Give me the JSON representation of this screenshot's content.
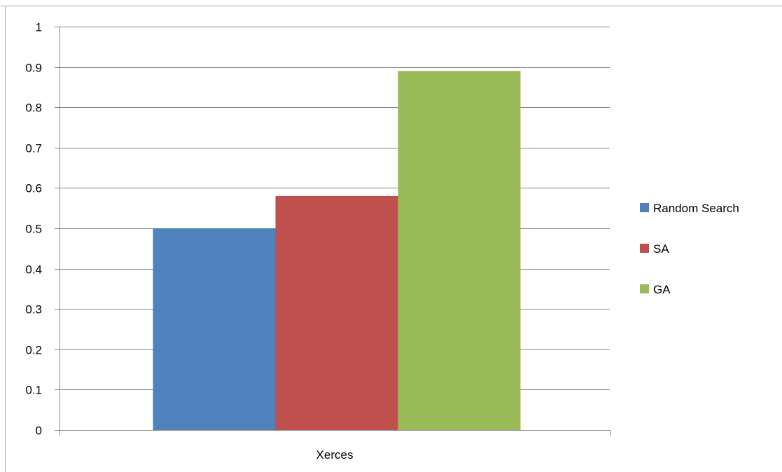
{
  "chart_data": {
    "type": "bar",
    "title": "",
    "xlabel": "",
    "ylabel": "",
    "categories": [
      "Xerces"
    ],
    "series": [
      {
        "name": "Random Search",
        "values": [
          0.5
        ],
        "color": "#4f81bd"
      },
      {
        "name": "SA",
        "values": [
          0.58
        ],
        "color": "#c0504d"
      },
      {
        "name": "GA",
        "values": [
          0.89
        ],
        "color": "#9bbb59"
      }
    ],
    "ylim": [
      0,
      1
    ],
    "yticks": [
      "0",
      "0.1",
      "0.2",
      "0.3",
      "0.4",
      "0.5",
      "0.6",
      "0.7",
      "0.8",
      "0.9",
      "1"
    ],
    "grid": true,
    "legend_position": "right"
  },
  "colors": {
    "gridline": "#868686",
    "frame": "#a6a6a6"
  }
}
